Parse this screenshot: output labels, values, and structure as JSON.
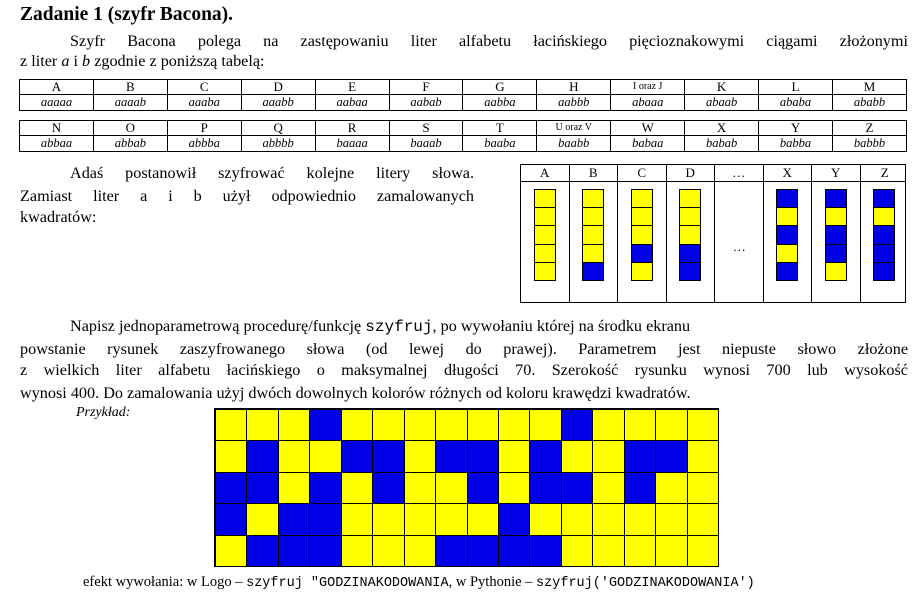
{
  "title": "Zadanie 1 (szyfr Bacona).",
  "intro": {
    "line1": "Szyfr Bacona polega na zastępowaniu liter alfabetu łacińskiego pięcioznakowymi ciągami złożonymi",
    "line2_a": "z liter",
    "line2_letter_a": "a",
    "line2_i": "i",
    "line2_letter_b": "b",
    "line2_rest": "zgodnie z poniższą tabelą:"
  },
  "cipher_table": {
    "rows": [
      {
        "letters": [
          "A",
          "B",
          "C",
          "D",
          "E",
          "F",
          "G",
          "H",
          "I oraz J",
          "K",
          "L",
          "M"
        ],
        "codes": [
          "aaaaa",
          "aaaab",
          "aaaba",
          "aaabb",
          "aabaa",
          "aabab",
          "aabba",
          "aabbb",
          "abaaa",
          "abaab",
          "ababa",
          "ababb"
        ]
      },
      {
        "letters": [
          "N",
          "O",
          "P",
          "Q",
          "R",
          "S",
          "T",
          "U oraz V",
          "W",
          "X",
          "Y",
          "Z"
        ],
        "codes": [
          "abbaa",
          "abbab",
          "abbba",
          "abbbb",
          "baaaa",
          "baaab",
          "baaba",
          "baabb",
          "babaa",
          "babab",
          "babba",
          "babbb"
        ]
      }
    ]
  },
  "description": {
    "line1": "Adaś postanowił szyfrować kolejne litery słowa.",
    "line2": "Zamiast liter a i b użył odpowiednio zamalowanych",
    "line3": "kwadratów:"
  },
  "encoding_table": {
    "headers": [
      "A",
      "B",
      "C",
      "D",
      "…",
      "X",
      "Y",
      "Z"
    ],
    "ellipsis": "…",
    "columns": [
      {
        "letter": "A",
        "code": "aaaaa"
      },
      {
        "letter": "B",
        "code": "aaaab"
      },
      {
        "letter": "C",
        "code": "aaaba"
      },
      {
        "letter": "D",
        "code": "aaabb"
      },
      {
        "letter": "X",
        "code": "babab"
      },
      {
        "letter": "Y",
        "code": "babba"
      },
      {
        "letter": "Z",
        "code": "babbb"
      }
    ],
    "colors": {
      "a": "#ffff00",
      "b": "#0000e6"
    }
  },
  "task": {
    "line1_a": "Napisz jednoparametrową procedurę/funkcję",
    "function_name": "szyfruj",
    "line1_b": ", po wywołaniu której na środku ekranu",
    "line2": "powstanie rysunek zaszyfrowanego słowa (od lewej do prawej). Parametrem jest niepuste słowo złożone",
    "line3": "z wielkich liter alfabetu łacińskiego o maksymalnej długości 70. Szerokość rysunku wynosi 700 lub wysokość",
    "line4": "wynosi 400. Do zamalowania użyj dwóch dowolnych kolorów różnych od koloru krawędzi kwadratów."
  },
  "example": {
    "label": "Przykład:",
    "word": "GODZINAKODOWANIA",
    "colors": {
      "a": "#ffff00",
      "b": "#0000e6"
    }
  },
  "footer": {
    "prefix": "efekt wywołania: w Logo –",
    "logo_call": "szyfruj \"GODZINAKODOWANIA",
    "middle": ", w Pythonie –",
    "python_call": "szyfruj('GODZINAKODOWANIA')"
  }
}
